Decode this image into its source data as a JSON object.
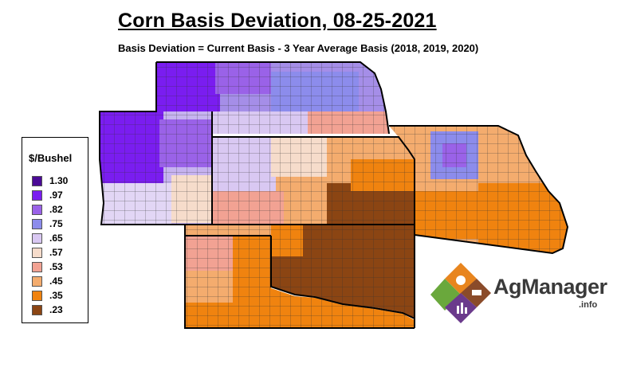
{
  "title": "Corn Basis Deviation, 08-25-2021",
  "subtitle": "Basis Deviation = Current Basis - 3 Year Average Basis (2018, 2019, 2020)",
  "legend": {
    "title": "$/Bushel",
    "items": [
      {
        "label": "1.30",
        "color": "#4b0a96"
      },
      {
        "label": ".97",
        "color": "#7a1df0"
      },
      {
        "label": ".82",
        "color": "#9a62e8"
      },
      {
        "label": ".75",
        "color": "#8c8cec"
      },
      {
        "label": ".65",
        "color": "#d9c8f2"
      },
      {
        "label": ".57",
        "color": "#f6dccb"
      },
      {
        "label": ".53",
        "color": "#f2a293"
      },
      {
        "label": ".45",
        "color": "#f4ac6e"
      },
      {
        "label": ".35",
        "color": "#f0830f"
      },
      {
        "label": ".23",
        "color": "#8b4513"
      }
    ]
  },
  "logo": {
    "name": "AgManager",
    "suffix": ".info",
    "colors": {
      "orange": "#e8851e",
      "green": "#6aa83c",
      "brown": "#8a4b2a",
      "purple": "#6b3a8c"
    }
  }
}
